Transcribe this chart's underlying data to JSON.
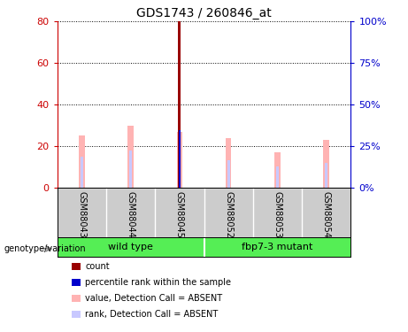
{
  "title": "GDS1743 / 260846_at",
  "samples": [
    "GSM88043",
    "GSM88044",
    "GSM88045",
    "GSM88052",
    "GSM88053",
    "GSM88054"
  ],
  "value_bars": [
    25,
    30,
    27,
    24,
    17,
    23
  ],
  "rank_bars": [
    15,
    18,
    27.5,
    13,
    10,
    12
  ],
  "count_bar_index": 2,
  "count_bar_value": 80,
  "percentile_rank_value": 27.5,
  "value_bar_color": "#ffb3b3",
  "rank_bar_color": "#c8c8ff",
  "count_color": "#990000",
  "percentile_color": "#0000cc",
  "ylim_left": [
    0,
    80
  ],
  "ylim_right": [
    0,
    100
  ],
  "yticks_left": [
    0,
    20,
    40,
    60,
    80
  ],
  "ytick_labels_left": [
    "0",
    "20",
    "40",
    "60",
    "80"
  ],
  "yticks_right": [
    0,
    25,
    50,
    75,
    100
  ],
  "ytick_labels_right": [
    "0%",
    "25%",
    "50%",
    "75%",
    "100%"
  ],
  "label_area_color": "#cccccc",
  "group_area_color": "#55ee55",
  "wild_type_label": "wild type",
  "mutant_label": "fbp7-3 mutant",
  "legend_items": [
    {
      "label": "count",
      "color": "#990000"
    },
    {
      "label": "percentile rank within the sample",
      "color": "#0000cc"
    },
    {
      "label": "value, Detection Call = ABSENT",
      "color": "#ffb3b3"
    },
    {
      "label": "rank, Detection Call = ABSENT",
      "color": "#c8c8ff"
    }
  ],
  "genotype_label": "genotype/variation"
}
